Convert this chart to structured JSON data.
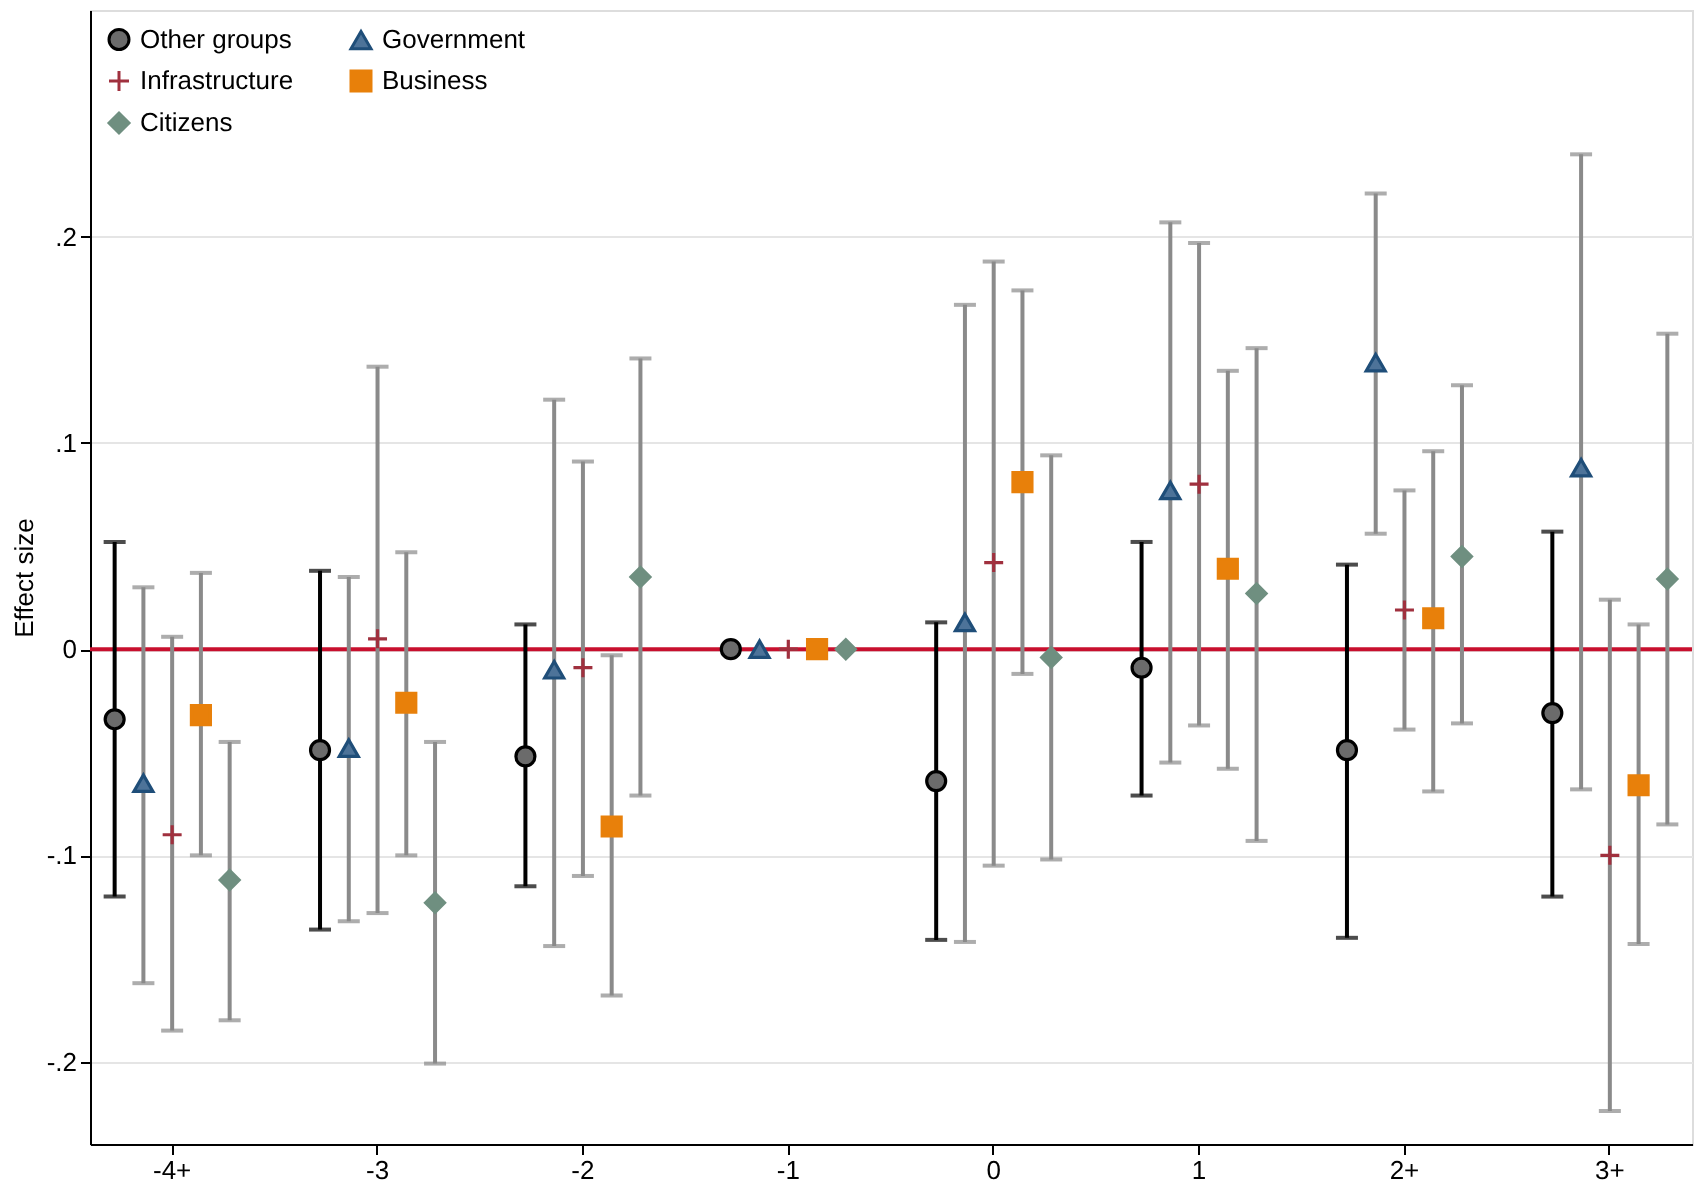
{
  "chart_data": {
    "type": "scatter",
    "ylabel": "Effect size",
    "categories": [
      "-4+",
      "-3",
      "-2",
      "-1",
      "0",
      "1",
      "2+",
      "3+"
    ],
    "ylim": [
      -0.24,
      0.31
    ],
    "yticks": [
      {
        "value": -0.2,
        "label": "-.2"
      },
      {
        "value": -0.1,
        "label": "-.1"
      },
      0,
      {
        "value": 0.1,
        "label": ".1"
      },
      {
        "value": 0.2,
        "label": ".2"
      }
    ],
    "grid": "y",
    "legend": "top left",
    "ref_lines": [
      {
        "axis": "y",
        "value": 0,
        "label": null,
        "color": "#c8102e"
      }
    ],
    "series": [
      {
        "name": "Other groups",
        "color": "#6b6b6b",
        "marker": "circle",
        "values": [
          -0.034,
          -0.049,
          -0.052,
          0,
          -0.064,
          -0.009,
          -0.049,
          -0.031
        ],
        "errors": [
          [
            -0.12,
            0.052
          ],
          [
            -0.136,
            0.038
          ],
          [
            -0.115,
            0.012
          ],
          null,
          [
            -0.141,
            0.013
          ],
          [
            -0.071,
            0.052
          ],
          [
            -0.14,
            0.041
          ],
          [
            -0.12,
            0.057
          ]
        ]
      },
      {
        "name": "Government",
        "color": "#4d7399",
        "marker": "triangle",
        "values": [
          -0.065,
          -0.048,
          -0.01,
          0,
          0.013,
          0.077,
          0.139,
          0.088
        ],
        "errors": [
          [
            -0.162,
            0.03
          ],
          [
            -0.132,
            0.035
          ],
          [
            -0.144,
            0.121
          ],
          null,
          [
            -0.142,
            0.167
          ],
          [
            -0.055,
            0.207
          ],
          [
            0.056,
            0.221
          ],
          [
            -0.068,
            0.24
          ]
        ]
      },
      {
        "name": "Infrastructure",
        "color": "#a0303e",
        "marker": "cross",
        "values": [
          -0.09,
          0.005,
          -0.009,
          0,
          0.042,
          0.08,
          0.019,
          -0.1
        ],
        "errors": [
          [
            -0.185,
            0.006
          ],
          [
            -0.128,
            0.137
          ],
          [
            -0.11,
            0.091
          ],
          null,
          [
            -0.105,
            0.188
          ],
          [
            -0.037,
            0.197
          ],
          [
            -0.039,
            0.077
          ],
          [
            -0.224,
            0.024
          ]
        ]
      },
      {
        "name": "Business",
        "color": "#e8800a",
        "marker": "square",
        "values": [
          -0.032,
          -0.026,
          -0.086,
          0,
          0.081,
          0.039,
          0.015,
          -0.066
        ],
        "errors": [
          [
            -0.1,
            0.037
          ],
          [
            -0.1,
            0.047
          ],
          [
            -0.168,
            -0.003
          ],
          null,
          [
            -0.012,
            0.174
          ],
          [
            -0.058,
            0.135
          ],
          [
            -0.069,
            0.096
          ],
          [
            -0.143,
            0.012
          ]
        ]
      },
      {
        "name": "Citizens",
        "color": "#6f8f80",
        "marker": "diamond",
        "values": [
          -0.112,
          -0.123,
          0.035,
          0,
          -0.004,
          0.027,
          0.045,
          0.034
        ],
        "errors": [
          [
            -0.18,
            -0.045
          ],
          [
            -0.201,
            -0.045
          ],
          [
            -0.071,
            0.141
          ],
          null,
          [
            -0.102,
            0.094
          ],
          [
            -0.093,
            0.146
          ],
          [
            -0.036,
            0.128
          ],
          [
            -0.085,
            0.153
          ]
        ]
      }
    ]
  }
}
